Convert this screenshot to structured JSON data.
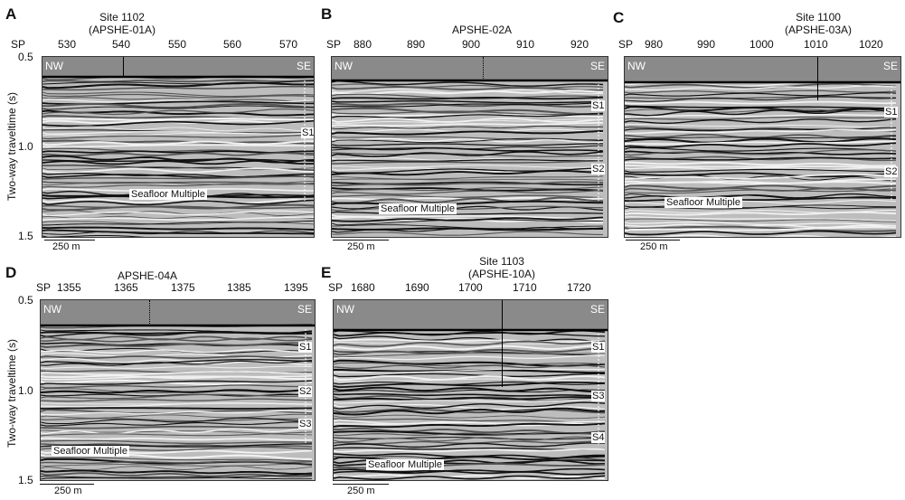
{
  "y_axis_label": "Two-way traveltime (s)",
  "y_ticks": [
    "0.5",
    "1.0",
    "1.5"
  ],
  "sp_label": "SP",
  "scale_label": "250 m",
  "seafloor_label": "Seafloor Multiple",
  "panels": [
    {
      "id": "A",
      "site": "Site 1102\n(APSHE-01A)",
      "ticks": [
        "530",
        "540",
        "550",
        "560",
        "570"
      ],
      "left": "NW",
      "right": "SE",
      "units": [
        "S1"
      ]
    },
    {
      "id": "B",
      "site": "APSHE-02A",
      "ticks": [
        "880",
        "890",
        "900",
        "910",
        "920"
      ],
      "left": "NW",
      "right": "SE",
      "units": [
        "S1",
        "S2"
      ]
    },
    {
      "id": "C",
      "site": "Site 1100\n(APSHE-03A)",
      "ticks": [
        "980",
        "990",
        "1000",
        "1010",
        "1020"
      ],
      "left": "NW",
      "right": "SE",
      "units": [
        "S1",
        "S2"
      ]
    },
    {
      "id": "D",
      "site": "APSHE-04A",
      "ticks": [
        "1355",
        "1365",
        "1375",
        "1385",
        "1395"
      ],
      "left": "NW",
      "right": "SE",
      "units": [
        "S1",
        "S2",
        "S3"
      ]
    },
    {
      "id": "E",
      "site": "Site 1103\n(APSHE-10A)",
      "ticks": [
        "1680",
        "1690",
        "1700",
        "1710",
        "1720"
      ],
      "left": "NW",
      "right": "SE",
      "units": [
        "S1",
        "S3",
        "S4"
      ]
    }
  ]
}
